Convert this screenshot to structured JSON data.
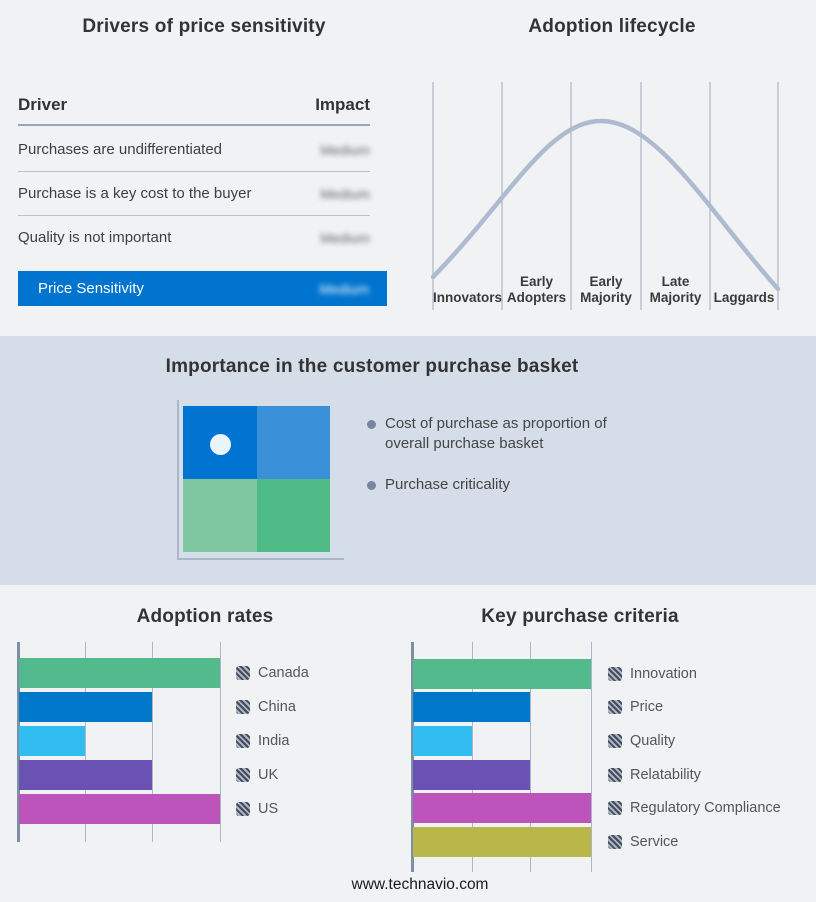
{
  "titles": {
    "drivers": "Drivers of price sensitivity",
    "lifecycle": "Adoption lifecycle",
    "basket": "Importance in the customer purchase basket",
    "adoption_rates": "Adoption rates",
    "key_criteria": "Key purchase criteria"
  },
  "footer": "www.technavio.com",
  "drivers_table": {
    "columns": [
      "Driver",
      "Impact"
    ],
    "rows": [
      {
        "driver": "Purchases are undifferentiated",
        "impact": "Medium"
      },
      {
        "driver": "Purchase is a key cost to the buyer",
        "impact": "Medium"
      },
      {
        "driver": "Quality is not important",
        "impact": "Medium"
      }
    ],
    "highlight_row": {
      "driver": "Price Sensitivity",
      "impact": "Medium"
    }
  },
  "basket": {
    "bullets": [
      "Cost of purchase as proportion of overall purchase basket",
      "Purchase criticality"
    ],
    "quadrant_colors": {
      "top_left": "#0074D0",
      "top_right": "#3990D9",
      "bottom_left": "#7FC7A0",
      "bottom_right": "#4FBB86"
    }
  },
  "chart_data": [
    {
      "type": "line",
      "title": "Adoption lifecycle",
      "categories": [
        "Innovators",
        "Early Adopters",
        "Early Majority",
        "Late Majority",
        "Laggards"
      ],
      "description": "Bell-shaped technology adoption curve rising from Innovators, peaking around Early Majority, falling to Laggards",
      "line_color": "#AEBACF",
      "grid": "vertical category separator lines",
      "legend_position": "none"
    },
    {
      "type": "bar",
      "title": "Adoption rates",
      "orientation": "horizontal",
      "categories": [
        "Canada",
        "China",
        "India",
        "UK",
        "US"
      ],
      "values": [
        100,
        66,
        33,
        66,
        100
      ],
      "xlim": [
        0,
        100
      ],
      "gridlines_at": [
        33,
        66,
        100
      ],
      "colors": [
        "#52BA8C",
        "#0077C8",
        "#32BDF2",
        "#6A52B4",
        "#BC54BC"
      ],
      "legend_position": "right"
    },
    {
      "type": "bar",
      "title": "Key purchase criteria",
      "orientation": "horizontal",
      "categories": [
        "Innovation",
        "Price",
        "Quality",
        "Relatability",
        "Regulatory Compliance",
        "Service"
      ],
      "values": [
        100,
        66,
        33,
        66,
        100,
        100
      ],
      "xlim": [
        0,
        100
      ],
      "gridlines_at": [
        33,
        66,
        100
      ],
      "colors": [
        "#52BA8C",
        "#0077C8",
        "#32BDF2",
        "#6A52B4",
        "#BC54BC",
        "#B9B64A"
      ],
      "legend_position": "right"
    }
  ],
  "colors": {
    "page_bg": "#F1F2F4",
    "band_bg": "#D5DDE8",
    "highlight_bar": "#0074CF",
    "curve": "#AEBACF",
    "gridline": "#A9B7C9",
    "axis": "#7D8FA5",
    "title_text": "#333333",
    "body_text": "#3F3F3F"
  }
}
